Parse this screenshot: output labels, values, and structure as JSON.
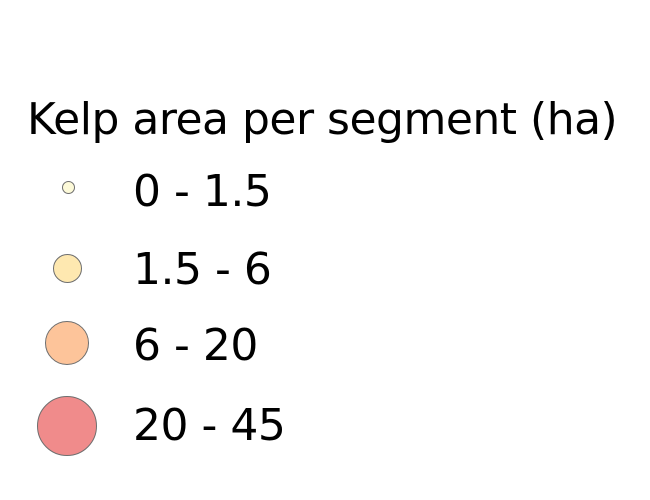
{
  "legend": {
    "title": "Kelp area per segment (ha)",
    "items": [
      {
        "label": "0 - 1.5",
        "color": "#fdfad9",
        "symbol": "proportional-circle"
      },
      {
        "label": "1.5 - 6",
        "color": "#fee8b0",
        "symbol": "proportional-circle"
      },
      {
        "label": "6 - 20",
        "color": "#fdc49a",
        "symbol": "proportional-circle"
      },
      {
        "label": "20 - 45",
        "color": "#f08b8b",
        "symbol": "proportional-circle"
      }
    ],
    "outline_color": "#6e6e6e"
  }
}
